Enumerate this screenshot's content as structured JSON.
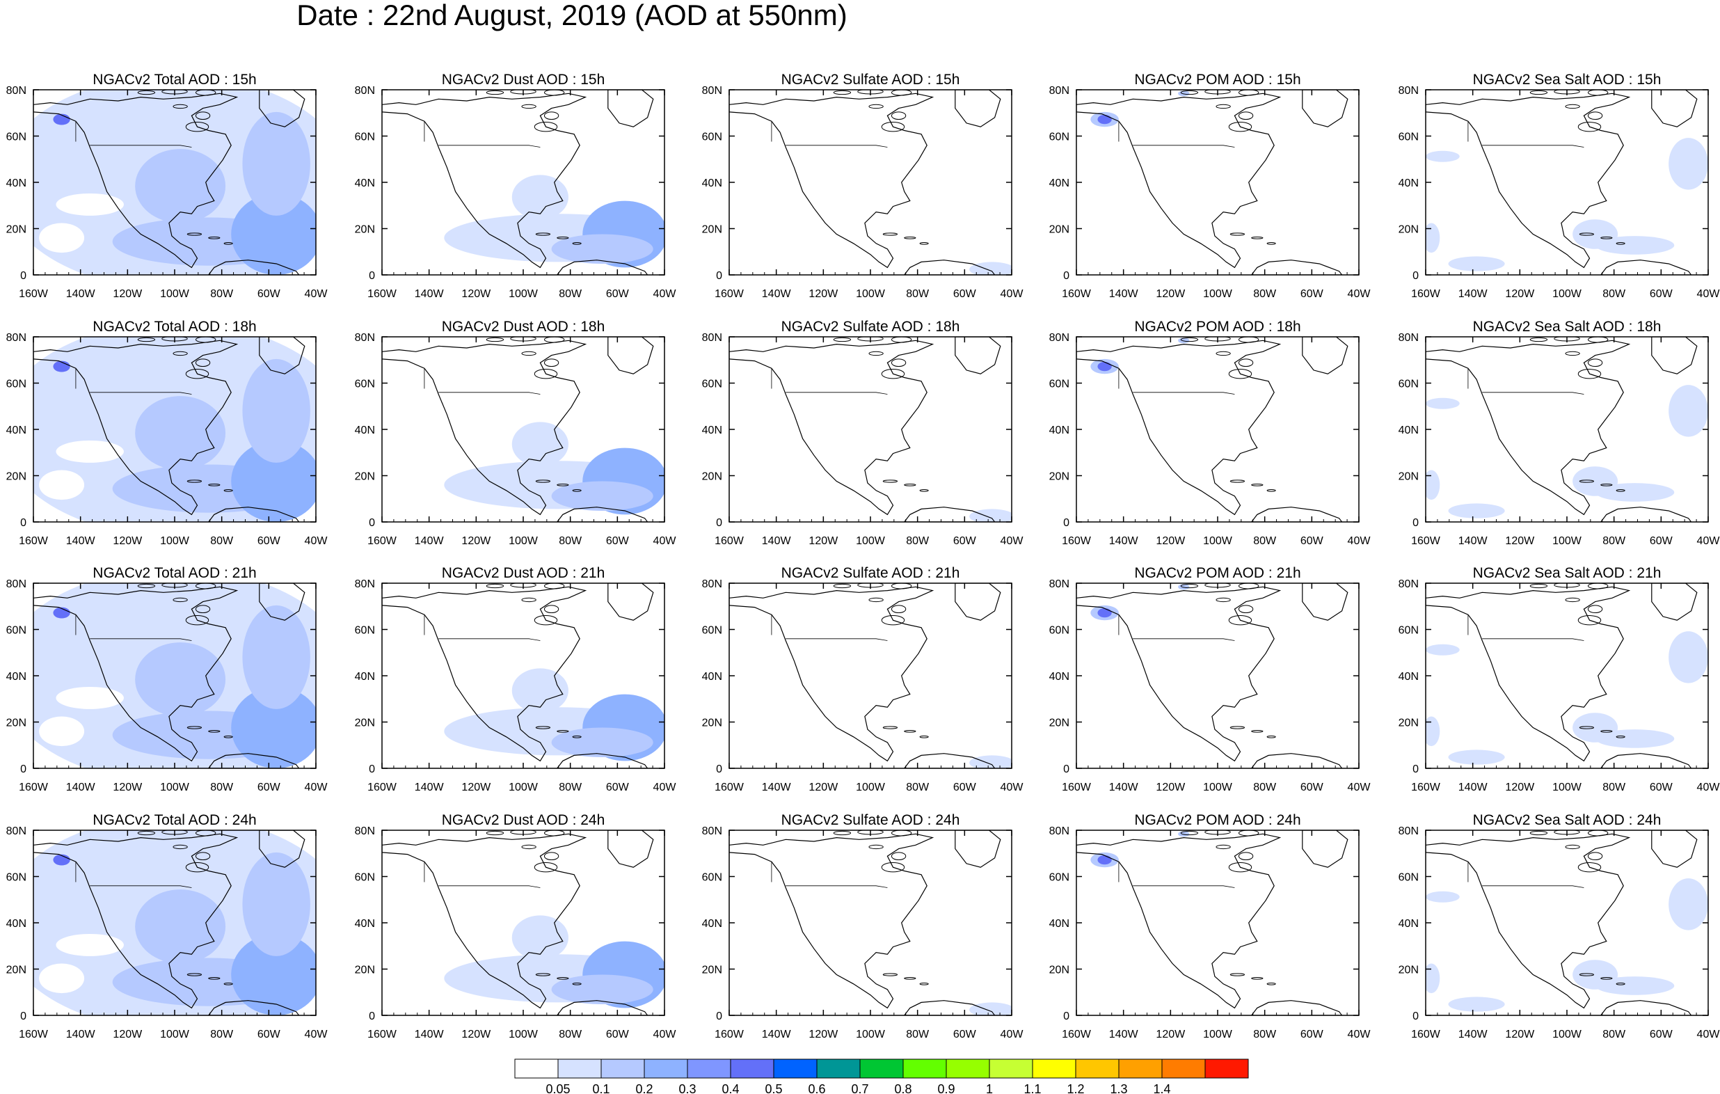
{
  "title": "Date : 22nd August, 2019 (AOD at 550nm)",
  "map_panels": {
    "species": [
      "Total",
      "Dust",
      "Sulfate",
      "POM",
      "Sea Salt"
    ],
    "hours": [
      "15h",
      "18h",
      "21h",
      "24h"
    ],
    "titles": [
      [
        "NGACv2 Total AOD : 15h",
        "NGACv2 Dust AOD : 15h",
        "NGACv2 Sulfate AOD : 15h",
        "NGACv2 POM AOD : 15h",
        "NGACv2 Sea Salt AOD : 15h"
      ],
      [
        "NGACv2 Total AOD : 18h",
        "NGACv2 Dust AOD : 18h",
        "NGACv2 Sulfate AOD : 18h",
        "NGACv2 POM AOD : 18h",
        "NGACv2 Sea Salt AOD : 18h"
      ],
      [
        "NGACv2 Total AOD : 21h",
        "NGACv2 Dust AOD : 21h",
        "NGACv2 Sulfate AOD : 21h",
        "NGACv2 POM AOD : 21h",
        "NGACv2 Sea Salt AOD : 21h"
      ],
      [
        "NGACv2 Total AOD : 24h",
        "NGACv2 Dust AOD : 24h",
        "NGACv2 Sulfate AOD : 24h",
        "NGACv2 POM AOD : 24h",
        "NGACv2 Sea Salt  AOD : 24h"
      ]
    ],
    "lon_range": [
      -160,
      -40
    ],
    "lat_range": [
      0,
      80
    ],
    "x_tick_labels": [
      "160W",
      "140W",
      "120W",
      "100W",
      "80W",
      "60W",
      "40W"
    ],
    "y_tick_labels": [
      "0",
      "20N",
      "40N",
      "60N",
      "80N"
    ]
  },
  "colorbar": {
    "colors": [
      "#ffffff",
      "#d6e2ff",
      "#b5c9ff",
      "#8eb2ff",
      "#7f96ff",
      "#6370f8",
      "#0063ff",
      "#009696",
      "#00c633",
      "#63ff00",
      "#96ff00",
      "#c6ff33",
      "#ffff00",
      "#ffc600",
      "#ffa000",
      "#ff7c00",
      "#ff1900"
    ],
    "labels": [
      "0.05",
      "0.1",
      "0.2",
      "0.3",
      "0.4",
      "0.5",
      "0.6",
      "0.7",
      "0.8",
      "0.9",
      "1",
      "1.1",
      "1.2",
      "1.3",
      "1.4"
    ]
  }
}
